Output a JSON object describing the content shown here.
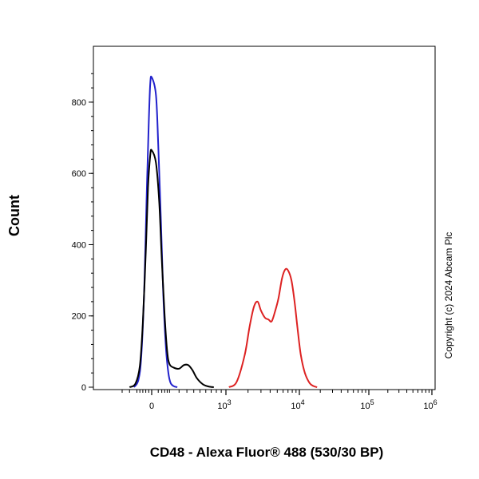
{
  "chart_data": {
    "type": "line",
    "title": "",
    "xlabel": "CD48 - Alexa Fluor® 488 (530/30 BP)",
    "ylabel": "Count",
    "x_scale": "biexponential",
    "xlim": [
      -200,
      1000000
    ],
    "ylim": [
      0,
      950
    ],
    "grid": false,
    "legend": "none",
    "y_ticks": [
      "0",
      "200",
      "400",
      "600",
      "800"
    ],
    "y_tick_values": [
      0,
      200,
      400,
      600,
      800
    ],
    "x_ticks": [
      {
        "base": "0",
        "exp": ""
      },
      {
        "base": "10",
        "exp": "3"
      },
      {
        "base": "10",
        "exp": "4"
      },
      {
        "base": "10",
        "exp": "5"
      },
      {
        "base": "10",
        "exp": "6"
      }
    ],
    "x_tick_values": [
      0,
      1000,
      10000,
      100000,
      1000000
    ],
    "series": [
      {
        "color": "#2222cc",
        "x": [
          -120,
          -90,
          -70,
          -50,
          -35,
          -20,
          -10,
          0,
          10,
          20,
          35,
          50,
          70,
          90,
          110,
          140,
          180
        ],
        "y": [
          0,
          20,
          90,
          280,
          520,
          740,
          850,
          870,
          820,
          680,
          460,
          260,
          110,
          40,
          12,
          3,
          0
        ]
      },
      {
        "color": "#000000",
        "x": [
          -150,
          -110,
          -80,
          -60,
          -40,
          -25,
          -10,
          0,
          10,
          25,
          40,
          60,
          80,
          100,
          140,
          200,
          260,
          320,
          380,
          450,
          550,
          650,
          750
        ],
        "y": [
          0,
          10,
          60,
          180,
          380,
          560,
          650,
          665,
          630,
          520,
          360,
          200,
          100,
          65,
          55,
          52,
          62,
          62,
          48,
          25,
          8,
          2,
          0
        ]
      },
      {
        "color": "#dd2222",
        "x": [
          1100,
          1400,
          1800,
          2100,
          2400,
          2700,
          3000,
          3400,
          3800,
          4200,
          4700,
          5200,
          5800,
          6400,
          7000,
          7800,
          8600,
          9500,
          10500,
          12000,
          14000,
          16000,
          18000
        ],
        "y": [
          0,
          15,
          90,
          170,
          225,
          240,
          215,
          195,
          190,
          185,
          215,
          250,
          305,
          330,
          328,
          300,
          240,
          160,
          90,
          40,
          12,
          3,
          0
        ]
      }
    ],
    "annotations": [
      "Copyright (c) 2024 Abcam Plc"
    ]
  }
}
